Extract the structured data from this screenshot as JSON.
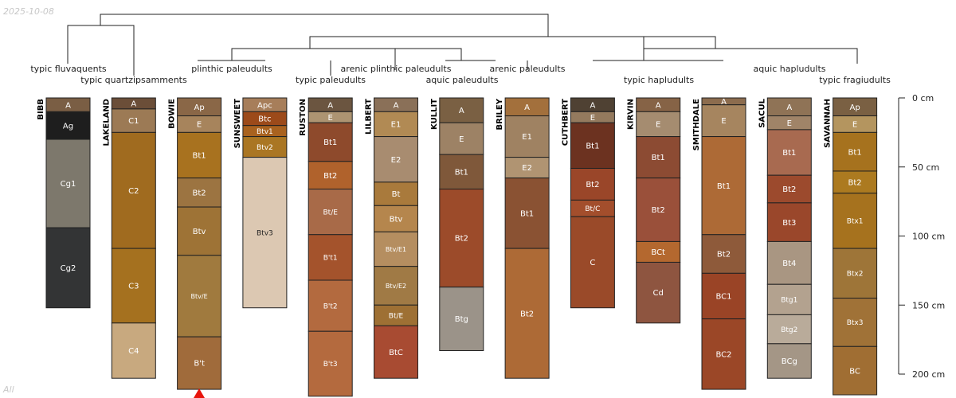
{
  "date": "2025-10-08",
  "footer_label": "All",
  "colors": {
    "tree_line": "#222222",
    "horizon_border": "#222222",
    "warning_marker": "#e8140c",
    "light_text": "#ffffff",
    "dark_text": "#222222",
    "meta_text": "#c8c8c8"
  },
  "depth_axis": {
    "max_cm": 200,
    "ticks": [
      {
        "value": 0,
        "label": "0 cm"
      },
      {
        "value": 50,
        "label": "50 cm"
      },
      {
        "value": 100,
        "label": "100 cm"
      },
      {
        "value": 150,
        "label": "150 cm"
      },
      {
        "value": 200,
        "label": "200 cm"
      }
    ]
  },
  "taxa": [
    {
      "id": "t1",
      "label": "typic fluvaquents"
    },
    {
      "id": "t2",
      "label": "typic quartzipsamments"
    },
    {
      "id": "t3",
      "label": "plinthic paleudults"
    },
    {
      "id": "t4",
      "label": "typic paleudults"
    },
    {
      "id": "t5",
      "label": "arenic plinthic paleudults"
    },
    {
      "id": "t6",
      "label": "aquic paleudults"
    },
    {
      "id": "t7",
      "label": "arenic paleudults"
    },
    {
      "id": "t8",
      "label": "typic hapludults"
    },
    {
      "id": "t9",
      "label": "aquic hapludults"
    },
    {
      "id": "t10",
      "label": "typic fragiudults"
    }
  ],
  "profiles": [
    {
      "name": "BIBB",
      "horizons": [
        {
          "name": "A",
          "top": 0,
          "bottom": 10,
          "color": "#7a5e44"
        },
        {
          "name": "Ag",
          "top": 10,
          "bottom": 30,
          "color": "#1e1e1e"
        },
        {
          "name": "Cg1",
          "top": 30,
          "bottom": 94,
          "color": "#7d786c"
        },
        {
          "name": "Cg2",
          "top": 94,
          "bottom": 152,
          "color": "#333435"
        }
      ]
    },
    {
      "name": "LAKELAND",
      "horizons": [
        {
          "name": "A",
          "top": 0,
          "bottom": 8,
          "color": "#6b4e38"
        },
        {
          "name": "C1",
          "top": 8,
          "bottom": 25,
          "color": "#9c7a55"
        },
        {
          "name": "C2",
          "top": 25,
          "bottom": 109,
          "color": "#a06b1f"
        },
        {
          "name": "C3",
          "top": 109,
          "bottom": 163,
          "color": "#a5711f"
        },
        {
          "name": "C4",
          "top": 163,
          "bottom": 203,
          "color": "#c8a97f"
        }
      ]
    },
    {
      "name": "BOWIE",
      "horizons": [
        {
          "name": "Ap",
          "top": 0,
          "bottom": 13,
          "color": "#8a6747"
        },
        {
          "name": "E",
          "top": 13,
          "bottom": 25,
          "color": "#a7845c"
        },
        {
          "name": "Bt1",
          "top": 25,
          "bottom": 58,
          "color": "#a8721f"
        },
        {
          "name": "Bt2",
          "top": 58,
          "bottom": 79,
          "color": "#9c7441"
        },
        {
          "name": "Btv",
          "top": 79,
          "bottom": 114,
          "color": "#9e7336"
        },
        {
          "name": "Btv/E",
          "top": 114,
          "bottom": 173,
          "color": "#a07a3e"
        },
        {
          "name": "B't",
          "top": 173,
          "bottom": 211,
          "color": "#a06b3b"
        }
      ]
    },
    {
      "name": "SUNSWEET",
      "horizons": [
        {
          "name": "Apc",
          "top": 0,
          "bottom": 10,
          "color": "#a77e5a"
        },
        {
          "name": "Btc",
          "top": 10,
          "bottom": 20,
          "color": "#9c4a1a"
        },
        {
          "name": "Btv1",
          "top": 20,
          "bottom": 28,
          "color": "#a9621f"
        },
        {
          "name": "Btv2",
          "top": 28,
          "bottom": 43,
          "color": "#aa7623"
        },
        {
          "name": "Btv3",
          "top": 43,
          "bottom": 152,
          "color": "#dcc8b2"
        }
      ]
    },
    {
      "name": "RUSTON",
      "horizons": [
        {
          "name": "A",
          "top": 0,
          "bottom": 10,
          "color": "#6b5540"
        },
        {
          "name": "E",
          "top": 10,
          "bottom": 18,
          "color": "#ad9472"
        },
        {
          "name": "Bt1",
          "top": 18,
          "bottom": 46,
          "color": "#8e4a2c"
        },
        {
          "name": "Bt2",
          "top": 46,
          "bottom": 66,
          "color": "#b0622c"
        },
        {
          "name": "Bt/E",
          "top": 66,
          "bottom": 99,
          "color": "#a86a48"
        },
        {
          "name": "B't1",
          "top": 99,
          "bottom": 132,
          "color": "#a4532c"
        },
        {
          "name": "B't2",
          "top": 132,
          "bottom": 169,
          "color": "#b36a3f"
        },
        {
          "name": "B't3",
          "top": 169,
          "bottom": 216,
          "color": "#b46a3e"
        }
      ]
    },
    {
      "name": "LILBERT",
      "horizons": [
        {
          "name": "A",
          "top": 0,
          "bottom": 10,
          "color": "#8a7058"
        },
        {
          "name": "E1",
          "top": 10,
          "bottom": 28,
          "color": "#b18a54"
        },
        {
          "name": "E2",
          "top": 28,
          "bottom": 61,
          "color": "#a88c70"
        },
        {
          "name": "Bt",
          "top": 61,
          "bottom": 78,
          "color": "#a97a3c"
        },
        {
          "name": "Btv",
          "top": 78,
          "bottom": 97,
          "color": "#b5864d"
        },
        {
          "name": "Btv/E1",
          "top": 97,
          "bottom": 122,
          "color": "#b58e60"
        },
        {
          "name": "Btv/E2",
          "top": 122,
          "bottom": 150,
          "color": "#a07a45"
        },
        {
          "name": "Bt/E",
          "top": 150,
          "bottom": 165,
          "color": "#9e7034"
        },
        {
          "name": "BtC",
          "top": 165,
          "bottom": 203,
          "color": "#a84b32"
        }
      ]
    },
    {
      "name": "KULLIT",
      "horizons": [
        {
          "name": "A",
          "top": 0,
          "bottom": 18,
          "color": "#7a6043"
        },
        {
          "name": "E",
          "top": 18,
          "bottom": 41,
          "color": "#9d8265"
        },
        {
          "name": "Bt1",
          "top": 41,
          "bottom": 66,
          "color": "#7f583a"
        },
        {
          "name": "Bt2",
          "top": 66,
          "bottom": 137,
          "color": "#9c4b2a"
        },
        {
          "name": "Btg",
          "top": 137,
          "bottom": 183,
          "color": "#9b9389"
        }
      ]
    },
    {
      "name": "BRILEY",
      "horizons": [
        {
          "name": "A",
          "top": 0,
          "bottom": 13,
          "color": "#a3703c"
        },
        {
          "name": "E1",
          "top": 13,
          "bottom": 43,
          "color": "#9f8262"
        },
        {
          "name": "E2",
          "top": 43,
          "bottom": 58,
          "color": "#b09472"
        },
        {
          "name": "Bt1",
          "top": 58,
          "bottom": 109,
          "color": "#8a5233"
        },
        {
          "name": "Bt2",
          "top": 109,
          "bottom": 203,
          "color": "#ad6a36"
        }
      ]
    },
    {
      "name": "CUTHBERT",
      "horizons": [
        {
          "name": "A",
          "top": 0,
          "bottom": 10,
          "color": "#4f4133"
        },
        {
          "name": "E",
          "top": 10,
          "bottom": 18,
          "color": "#947a5e"
        },
        {
          "name": "Bt1",
          "top": 18,
          "bottom": 51,
          "color": "#6c3220"
        },
        {
          "name": "Bt2",
          "top": 51,
          "bottom": 74,
          "color": "#9a4629"
        },
        {
          "name": "Bt/C",
          "top": 74,
          "bottom": 86,
          "color": "#a34e2c"
        },
        {
          "name": "C",
          "top": 86,
          "bottom": 152,
          "color": "#9a4a29"
        }
      ]
    },
    {
      "name": "KIRVIN",
      "horizons": [
        {
          "name": "A",
          "top": 0,
          "bottom": 10,
          "color": "#866346"
        },
        {
          "name": "E",
          "top": 10,
          "bottom": 28,
          "color": "#a58c70"
        },
        {
          "name": "Bt1",
          "top": 28,
          "bottom": 58,
          "color": "#8c4b33"
        },
        {
          "name": "Bt2",
          "top": 58,
          "bottom": 104,
          "color": "#9a503a"
        },
        {
          "name": "BCt",
          "top": 104,
          "bottom": 119,
          "color": "#b4682f"
        },
        {
          "name": "Cd",
          "top": 119,
          "bottom": 163,
          "color": "#8e5540"
        }
      ]
    },
    {
      "name": "SMITHDALE",
      "horizons": [
        {
          "name": "A",
          "top": 0,
          "bottom": 5,
          "color": "#8c6c4e"
        },
        {
          "name": "E",
          "top": 5,
          "bottom": 28,
          "color": "#a6855f"
        },
        {
          "name": "Bt1",
          "top": 28,
          "bottom": 99,
          "color": "#ad6a36"
        },
        {
          "name": "Bt2",
          "top": 99,
          "bottom": 127,
          "color": "#8e5a3a"
        },
        {
          "name": "BC1",
          "top": 127,
          "bottom": 160,
          "color": "#9a4426"
        },
        {
          "name": "BC2",
          "top": 160,
          "bottom": 211,
          "color": "#9b4727"
        }
      ]
    },
    {
      "name": "SACUL",
      "horizons": [
        {
          "name": "A",
          "top": 0,
          "bottom": 13,
          "color": "#8f7356"
        },
        {
          "name": "E",
          "top": 13,
          "bottom": 23,
          "color": "#a08468"
        },
        {
          "name": "Bt1",
          "top": 23,
          "bottom": 56,
          "color": "#a86a50"
        },
        {
          "name": "Bt2",
          "top": 56,
          "bottom": 76,
          "color": "#9c4a2d"
        },
        {
          "name": "Bt3",
          "top": 76,
          "bottom": 104,
          "color": "#9a472b"
        },
        {
          "name": "Bt4",
          "top": 104,
          "bottom": 135,
          "color": "#a99682"
        },
        {
          "name": "Btg1",
          "top": 135,
          "bottom": 157,
          "color": "#b3a28f"
        },
        {
          "name": "Btg2",
          "top": 157,
          "bottom": 178,
          "color": "#b9ab9a"
        },
        {
          "name": "BCg",
          "top": 178,
          "bottom": 203,
          "color": "#a49686"
        }
      ]
    },
    {
      "name": "SAVANNAH",
      "horizons": [
        {
          "name": "Ap",
          "top": 0,
          "bottom": 13,
          "color": "#7a6043"
        },
        {
          "name": "E",
          "top": 13,
          "bottom": 25,
          "color": "#b4955f"
        },
        {
          "name": "Bt1",
          "top": 25,
          "bottom": 53,
          "color": "#a6721e"
        },
        {
          "name": "Bt2",
          "top": 53,
          "bottom": 69,
          "color": "#ac7a20"
        },
        {
          "name": "Btx1",
          "top": 69,
          "bottom": 109,
          "color": "#a6721e"
        },
        {
          "name": "Btx2",
          "top": 109,
          "bottom": 145,
          "color": "#9e7538"
        },
        {
          "name": "Btx3",
          "top": 145,
          "bottom": 180,
          "color": "#a07237"
        },
        {
          "name": "BC",
          "top": 180,
          "bottom": 215,
          "color": "#a06e33"
        }
      ]
    }
  ]
}
